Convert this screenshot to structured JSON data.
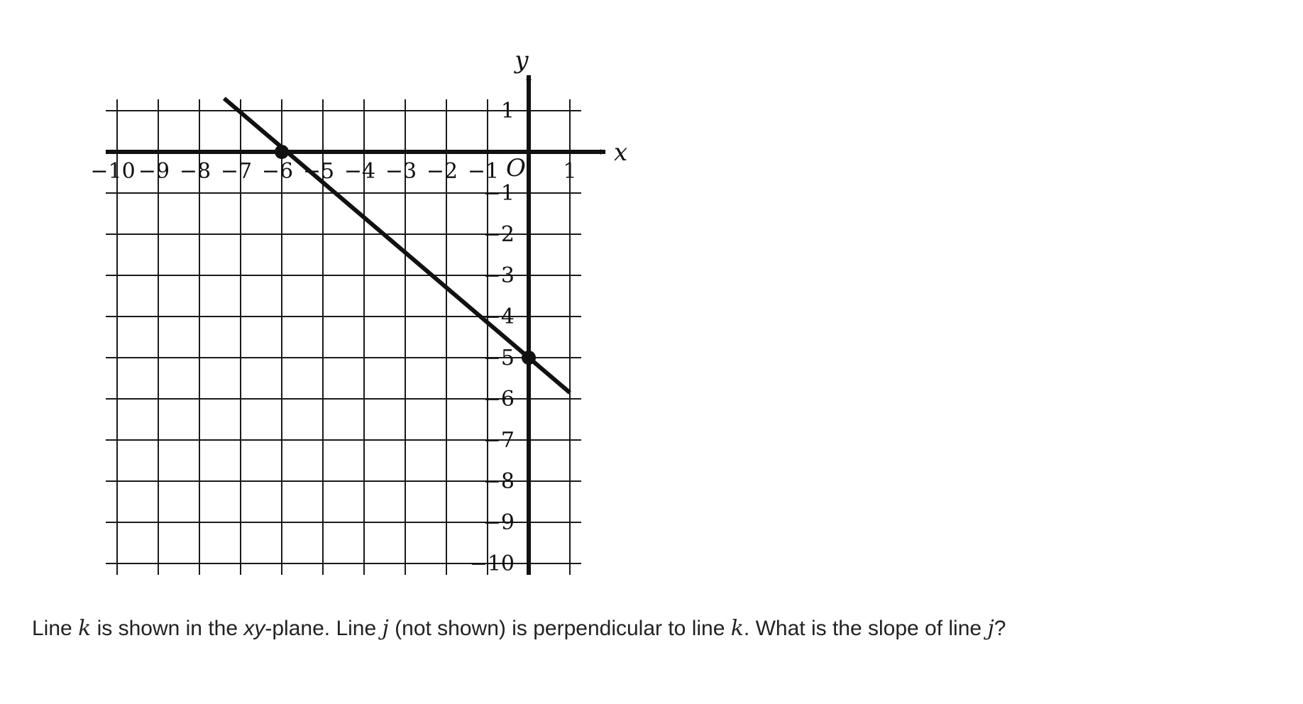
{
  "chart_data": {
    "type": "line",
    "xlabel": "x",
    "ylabel": "y",
    "origin_label": "O",
    "xlim": [
      -10,
      1
    ],
    "ylim": [
      -10,
      1
    ],
    "grid": true,
    "x_tick_labels": [
      "−10",
      "−9",
      "−8",
      "−7",
      "−6",
      "−5",
      "−4",
      "−3",
      "−2",
      "−1",
      "1"
    ],
    "x_tick_values": [
      -10,
      -9,
      -8,
      -7,
      -6,
      -5,
      -4,
      -3,
      -2,
      -1,
      1
    ],
    "y_tick_labels": [
      "1",
      "−1",
      "−2",
      "−3",
      "−4",
      "−5",
      "−6",
      "−7",
      "−8",
      "−9",
      "−10"
    ],
    "y_tick_values": [
      1,
      -1,
      -2,
      -3,
      -4,
      -5,
      -6,
      -7,
      -8,
      -9,
      -10
    ],
    "series": [
      {
        "x": [
          -7.4,
          1
        ],
        "y": [
          1.3,
          -5.85
        ],
        "color": "#111111"
      }
    ],
    "points": [
      {
        "x": -6,
        "y": 0
      },
      {
        "x": 0,
        "y": -5
      }
    ]
  },
  "question": {
    "part1": "Line ",
    "var_k": "k",
    "part2": " is shown in the ",
    "xy": "xy",
    "part3": "-plane. Line ",
    "var_j": "j",
    "part4": " (not shown) is perpendicular to line ",
    "var_k2": "k",
    "part5": ". What is the slope of line ",
    "var_j2": "j",
    "part6": "?"
  }
}
